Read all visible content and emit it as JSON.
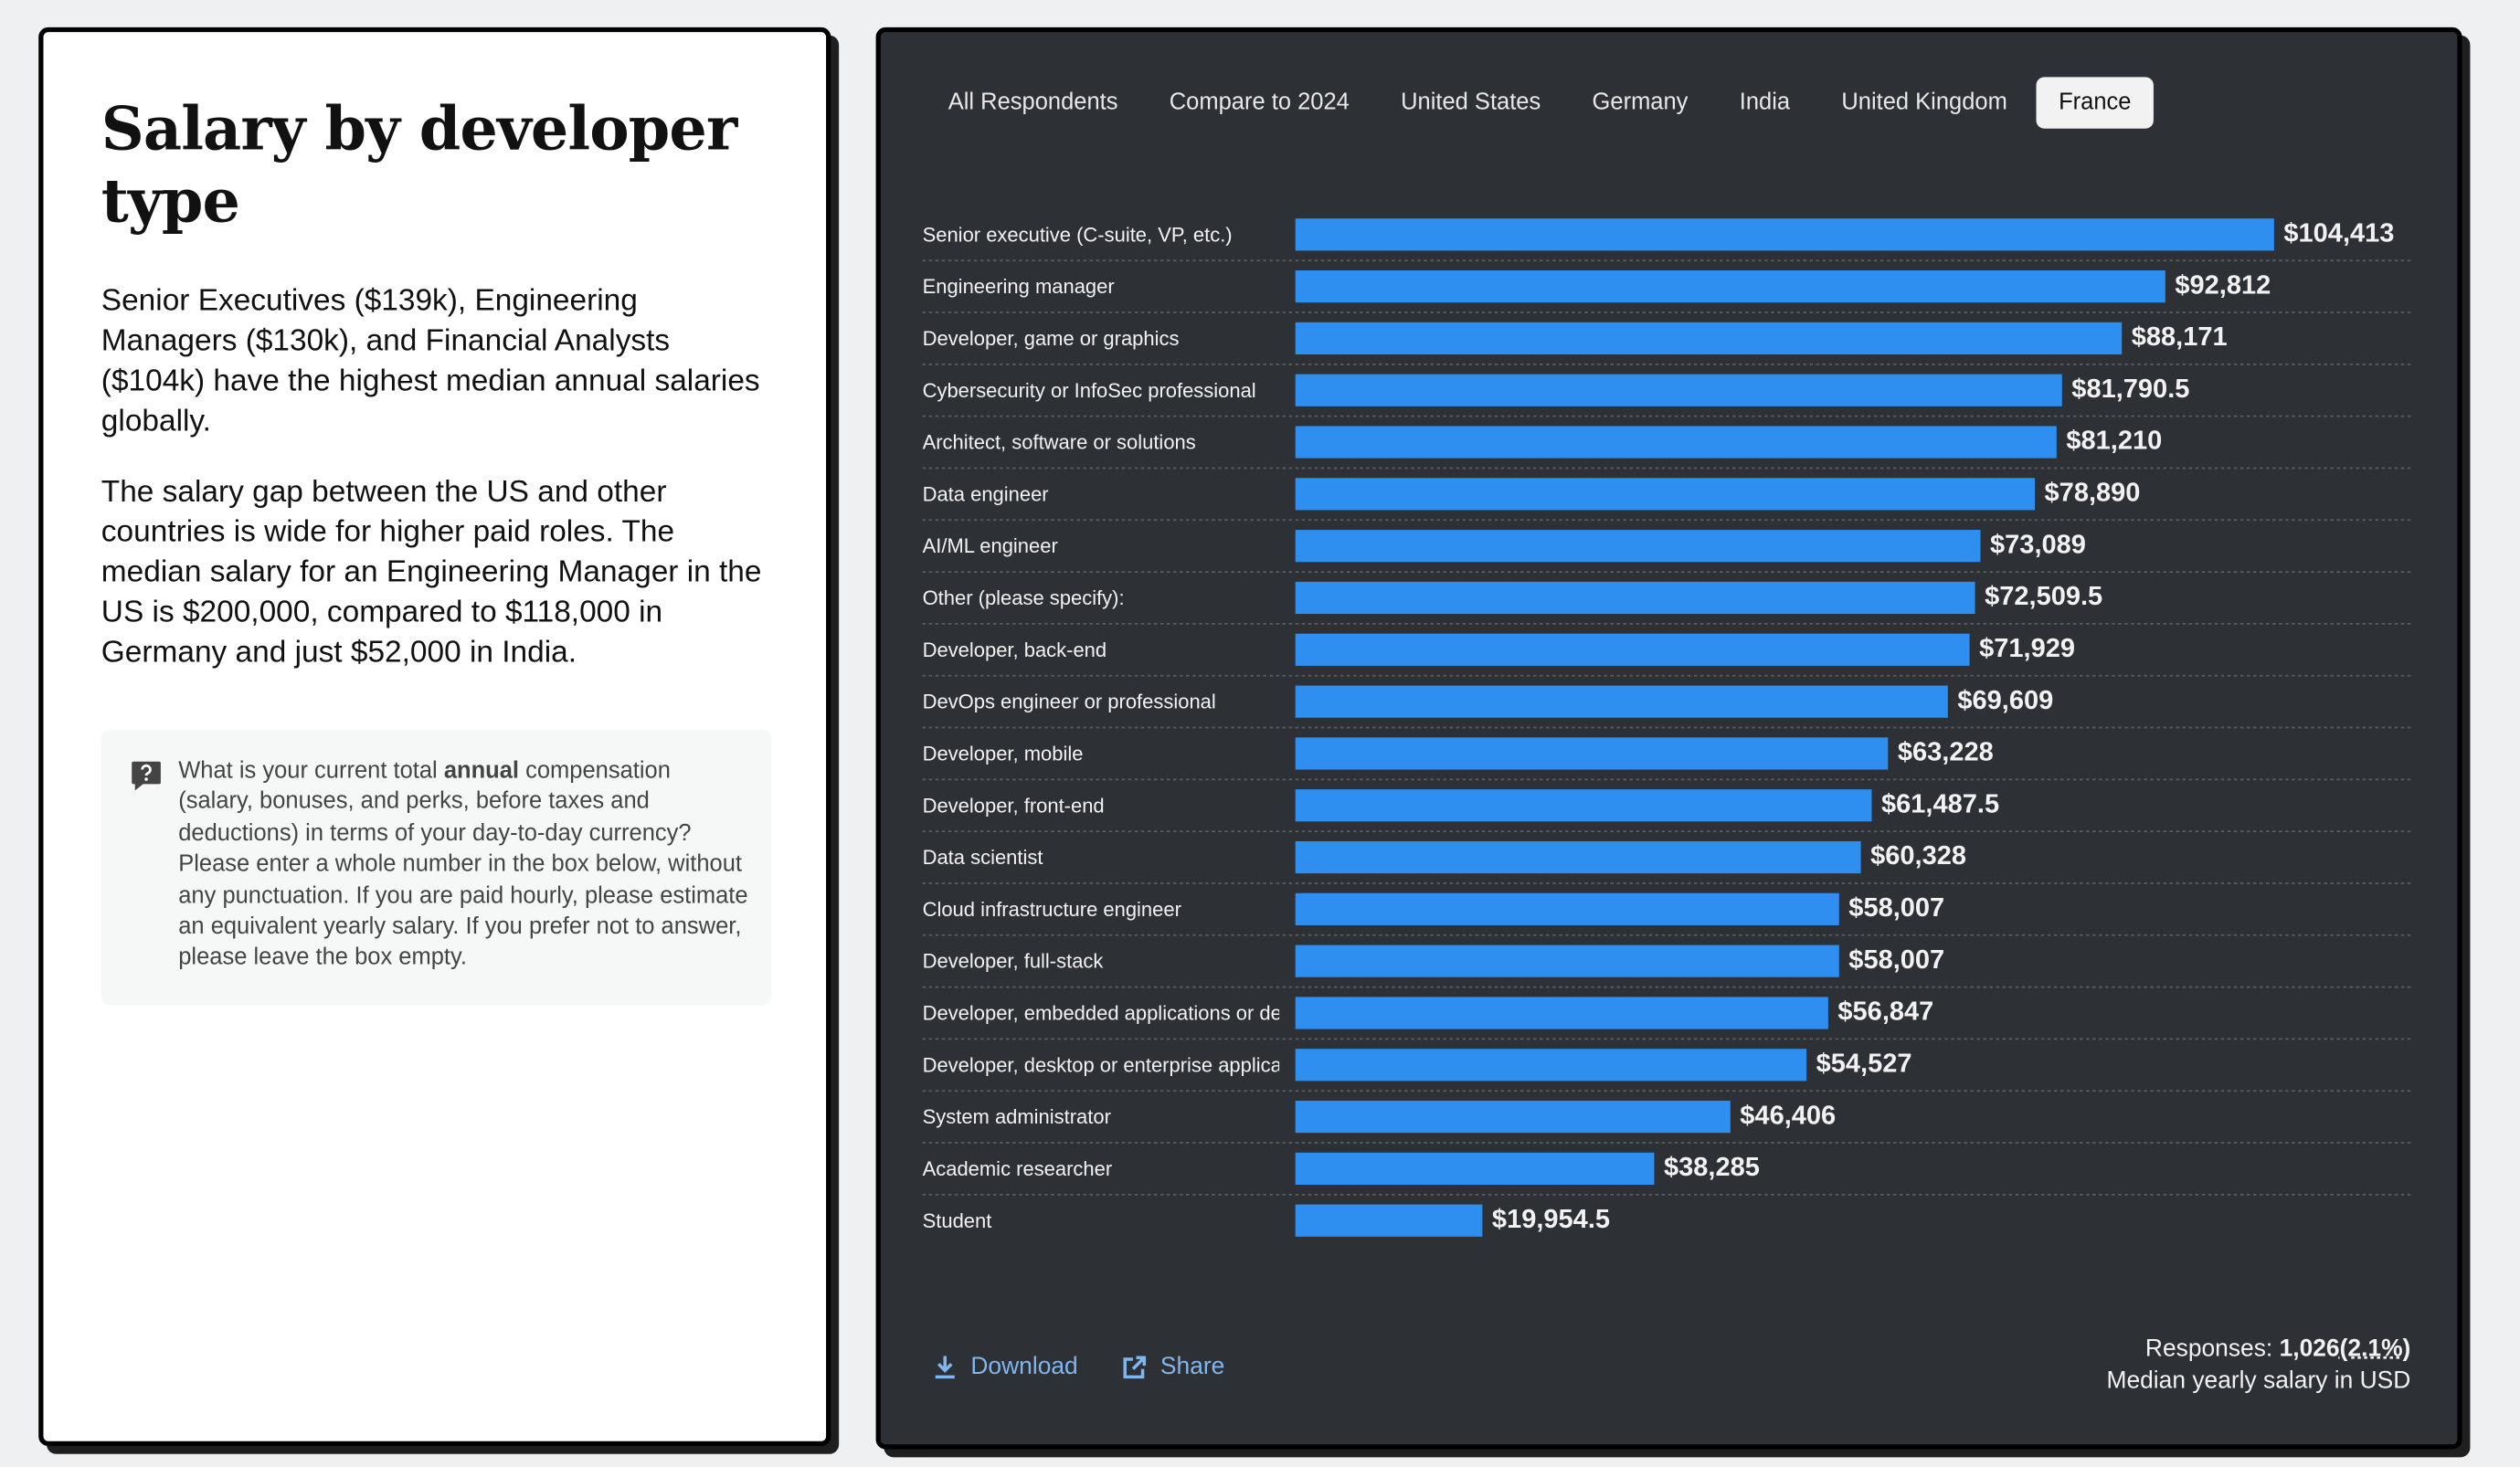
{
  "header": {
    "title": "Salary by developer type"
  },
  "paragraphs": [
    "Senior Executives ($139k), Engineering Managers ($130k), and Financial Analysts ($104k) have the highest median annual salaries globally.",
    "The salary gap between the US and other countries is wide for higher paid roles. The median salary for an Engineering Manager in the US is $200,000, compared to $118,000 in Germany and just $52,000 in India."
  ],
  "question": {
    "parts": [
      "What is your current total ",
      "annual",
      " compensation (salary, bonuses, and perks, before taxes and deductions) in terms of your day-to-day currency? Please enter a whole number in the box below, without any punctuation. If you are paid hourly, please estimate an equivalent yearly salary. If you prefer not to answer, please leave the box empty."
    ]
  },
  "tabs": {
    "items": [
      "All Respondents",
      "Compare to 2024",
      "United States",
      "Germany",
      "India",
      "United Kingdom",
      "France"
    ],
    "active": 6
  },
  "chart_data": {
    "type": "bar",
    "orientation": "horizontal",
    "color": "#2f8ff0",
    "categories": [
      "Senior executive (C-suite, VP, etc.)",
      "Engineering manager",
      "Developer, game or graphics",
      "Cybersecurity or InfoSec professional",
      "Architect, software or solutions",
      "Data engineer",
      "AI/ML engineer",
      "Other (please specify):",
      "Developer, back-end",
      "DevOps engineer or professional",
      "Developer, mobile",
      "Developer, front-end",
      "Data scientist",
      "Cloud infrastructure engineer",
      "Developer, full-stack",
      "Developer, embedded applications or de",
      "Developer, desktop or enterprise applica",
      "System administrator",
      "Academic researcher",
      "Student"
    ],
    "values": [
      104413,
      92812,
      88171,
      81790.5,
      81210,
      78890,
      73089,
      72509.5,
      71929,
      69609,
      63228,
      61487.5,
      60328,
      58007,
      58007,
      56847,
      54527,
      46406,
      38285,
      19954.5
    ],
    "value_labels": [
      "$104,413",
      "$92,812",
      "$88,171",
      "$81,790.5",
      "$81,210",
      "$78,890",
      "$73,089",
      "$72,509.5",
      "$71,929",
      "$69,609",
      "$63,228",
      "$61,487.5",
      "$60,328",
      "$58,007",
      "$58,007",
      "$56,847",
      "$54,527",
      "$46,406",
      "$38,285",
      "$19,954.5"
    ]
  },
  "footer": {
    "download": "Download",
    "share": "Share",
    "responses_label": "Responses: ",
    "responses": "1,026",
    "responses_share": "(2.1%)",
    "note": "Median yearly salary in USD"
  }
}
